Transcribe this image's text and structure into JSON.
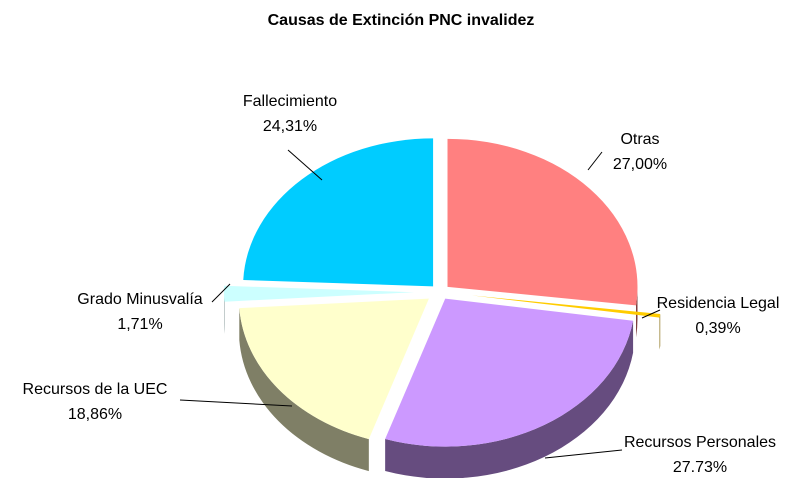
{
  "chart_data": {
    "type": "pie",
    "title": "Causas de Extinción PNC invalidez",
    "categories": [
      "Otras",
      "Residencia Legal",
      "Recursos Personales",
      "Recursos de la UEC",
      "Grado Minusvalía",
      "Fallecimiento"
    ],
    "values": [
      27.0,
      0.39,
      27.73,
      18.86,
      1.71,
      24.31
    ],
    "value_labels": [
      "27,00%",
      "0,39%",
      "27.73%",
      "18,86%",
      "1,71%",
      "24,31%"
    ],
    "colors": [
      "#ff8080",
      "#ffcc00",
      "#cc99ff",
      "#ffffcc",
      "#ccffff",
      "#00ccff"
    ]
  }
}
